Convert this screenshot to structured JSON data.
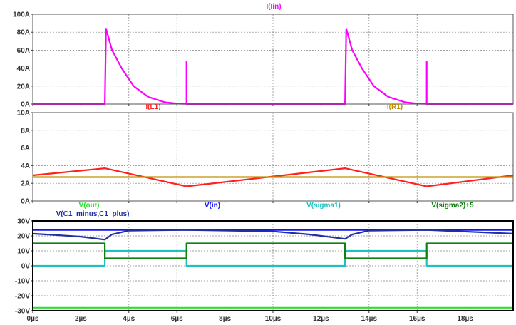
{
  "colors": {
    "I(Iin)": "#ff00ff",
    "I(L1)": "#ff2020",
    "I(R1)": "#c09000",
    "V(out)": "#2ee02e",
    "V(in)": "#1010ff",
    "V(C1_minus,C1_plus)": "#2030a0",
    "V(sigma1)": "#20c0c0",
    "V(sigma2)+5": "#108010"
  },
  "chart_data": [
    {
      "type": "line",
      "series": [
        {
          "name": "I(Iin)",
          "x": [
            0,
            3.0,
            3.0,
            3.05,
            3.3,
            3.7,
            4.2,
            4.8,
            5.5,
            6.0,
            6.4,
            6.4,
            6.4,
            6.4,
            13.0,
            13.0,
            13.05,
            13.3,
            13.7,
            14.2,
            14.8,
            15.5,
            16.0,
            16.4,
            16.4,
            16.4,
            16.4,
            20
          ],
          "y": [
            0,
            0,
            0,
            84,
            60,
            40,
            20,
            8,
            2,
            0.5,
            0.3,
            47,
            47,
            0,
            0,
            0,
            84,
            60,
            40,
            20,
            8,
            2,
            0.5,
            0.3,
            47,
            47,
            0,
            0
          ]
        }
      ],
      "x_tick_labels": [
        "0µs",
        "2µs",
        "4µs",
        "6µs",
        "8µs",
        "10µs",
        "12µs",
        "14µs",
        "16µs",
        "18µs"
      ],
      "y_tick_labels": [
        "0A",
        "20A",
        "40A",
        "60A",
        "80A",
        "100A"
      ],
      "xlim": [
        0,
        20
      ],
      "ylim": [
        0,
        100
      ],
      "grid": true
    },
    {
      "type": "line",
      "series": [
        {
          "name": "I(L1)",
          "x": [
            0,
            3.0,
            6.4,
            13.0,
            16.4,
            20
          ],
          "y": [
            2.9,
            3.7,
            1.65,
            3.7,
            1.65,
            2.9
          ]
        },
        {
          "name": "I(R1)",
          "x": [
            0,
            20
          ],
          "y": [
            2.7,
            2.7
          ]
        }
      ],
      "x_tick_labels": [
        "0µs",
        "2µs",
        "4µs",
        "6µs",
        "8µs",
        "10µs",
        "12µs",
        "14µs",
        "16µs",
        "18µs"
      ],
      "y_tick_labels": [
        "0A",
        "2A",
        "4A",
        "6A",
        "8A",
        "10A"
      ],
      "xlim": [
        0,
        20
      ],
      "ylim": [
        0,
        10
      ],
      "grid": true
    },
    {
      "type": "line",
      "series": [
        {
          "name": "V(out)",
          "x": [
            0,
            20
          ],
          "y": [
            -28,
            -28
          ]
        },
        {
          "name": "V(in)",
          "x": [
            0,
            20
          ],
          "y": [
            24,
            24
          ]
        },
        {
          "name": "V(C1_minus,C1_plus)",
          "x": [
            0,
            1.0,
            2.0,
            3.0,
            3.3,
            4.0,
            6.4,
            10.0,
            11.5,
            13.0,
            13.3,
            14.0,
            16.4,
            20
          ],
          "y": [
            21.5,
            20.5,
            19.5,
            17.5,
            21,
            23.5,
            24,
            23,
            21,
            18,
            21,
            23.5,
            24,
            21.5
          ]
        },
        {
          "name": "V(sigma1)",
          "x": [
            0,
            3.0,
            3.0,
            6.4,
            6.4,
            13.0,
            13.0,
            16.4,
            16.4,
            20
          ],
          "y": [
            0,
            0,
            10,
            10,
            0,
            0,
            10,
            10,
            0,
            0
          ]
        },
        {
          "name": "V(sigma2)+5",
          "x": [
            0,
            3.0,
            3.0,
            6.4,
            6.4,
            13.0,
            13.0,
            16.4,
            16.4,
            20
          ],
          "y": [
            15,
            15,
            5,
            5,
            15,
            15,
            5,
            5,
            15,
            15
          ]
        }
      ],
      "x_tick_labels": [
        "0µs",
        "2µs",
        "4µs",
        "6µs",
        "8µs",
        "10µs",
        "12µs",
        "14µs",
        "16µs",
        "18µs"
      ],
      "y_tick_labels": [
        "-30V",
        "-20V",
        "-10V",
        "0V",
        "10V",
        "20V",
        "30V"
      ],
      "xlim": [
        0,
        20
      ],
      "ylim": [
        -30,
        30
      ],
      "grid": true
    }
  ]
}
